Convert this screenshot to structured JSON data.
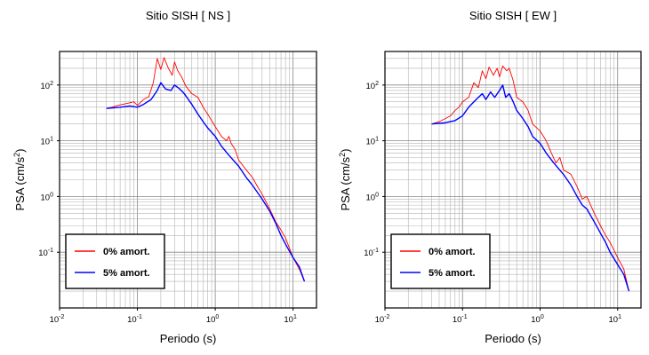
{
  "chart_data": [
    {
      "type": "line",
      "title": "Sitio SISH [ NS ]",
      "xlabel": "Periodo (s)",
      "ylabel": "PSA (cm/s2)",
      "xscale": "log",
      "yscale": "log",
      "xlim": [
        0.01,
        20
      ],
      "ylim": [
        0.01,
        400
      ],
      "x_ticks": [
        0.01,
        0.1,
        1,
        10
      ],
      "x_tick_labels": [
        [
          "10",
          "-2"
        ],
        [
          "10",
          "-1"
        ],
        [
          "10",
          "0"
        ],
        [
          "10",
          "1"
        ]
      ],
      "y_ticks": [
        0.1,
        1,
        10,
        100
      ],
      "y_tick_labels": [
        [
          "10",
          "-1"
        ],
        [
          "10",
          "0"
        ],
        [
          "10",
          "1"
        ],
        [
          "10",
          "2"
        ]
      ],
      "grid": true,
      "legend": "bottom-left",
      "series": [
        {
          "name": "0% amort.",
          "color": "#ff0000",
          "points": [
            [
              0.04,
              38
            ],
            [
              0.05,
              41
            ],
            [
              0.06,
              44
            ],
            [
              0.07,
              46
            ],
            [
              0.08,
              48
            ],
            [
              0.09,
              50
            ],
            [
              0.1,
              43
            ],
            [
              0.12,
              55
            ],
            [
              0.14,
              62
            ],
            [
              0.16,
              110
            ],
            [
              0.18,
              300
            ],
            [
              0.2,
              190
            ],
            [
              0.22,
              310
            ],
            [
              0.25,
              200
            ],
            [
              0.28,
              150
            ],
            [
              0.3,
              260
            ],
            [
              0.33,
              180
            ],
            [
              0.37,
              140
            ],
            [
              0.42,
              95
            ],
            [
              0.5,
              70
            ],
            [
              0.6,
              60
            ],
            [
              0.7,
              40
            ],
            [
              0.8,
              30
            ],
            [
              1.0,
              18
            ],
            [
              1.2,
              12
            ],
            [
              1.4,
              10
            ],
            [
              1.5,
              12
            ],
            [
              1.6,
              9
            ],
            [
              1.8,
              7
            ],
            [
              2.0,
              4.5
            ],
            [
              2.5,
              3
            ],
            [
              3.0,
              2.2
            ],
            [
              3.5,
              1.5
            ],
            [
              4.0,
              1.1
            ],
            [
              5.0,
              0.6
            ],
            [
              6.0,
              0.35
            ],
            [
              7.0,
              0.25
            ],
            [
              8.0,
              0.18
            ],
            [
              10.0,
              0.08
            ],
            [
              12.0,
              0.05
            ],
            [
              14.0,
              0.03
            ]
          ]
        },
        {
          "name": "5% amort.",
          "color": "#0000ff",
          "points": [
            [
              0.04,
              38
            ],
            [
              0.06,
              40
            ],
            [
              0.08,
              42
            ],
            [
              0.1,
              40
            ],
            [
              0.12,
              45
            ],
            [
              0.15,
              55
            ],
            [
              0.18,
              80
            ],
            [
              0.2,
              110
            ],
            [
              0.23,
              85
            ],
            [
              0.27,
              80
            ],
            [
              0.3,
              100
            ],
            [
              0.35,
              85
            ],
            [
              0.4,
              70
            ],
            [
              0.5,
              45
            ],
            [
              0.6,
              30
            ],
            [
              0.7,
              22
            ],
            [
              0.8,
              17
            ],
            [
              1.0,
              12
            ],
            [
              1.2,
              8
            ],
            [
              1.5,
              5.5
            ],
            [
              2.0,
              3.5
            ],
            [
              2.5,
              2.2
            ],
            [
              3.0,
              1.6
            ],
            [
              4.0,
              0.9
            ],
            [
              5.0,
              0.55
            ],
            [
              6.0,
              0.33
            ],
            [
              7.0,
              0.2
            ],
            [
              8.0,
              0.14
            ],
            [
              10.0,
              0.08
            ],
            [
              12.0,
              0.055
            ],
            [
              14.0,
              0.03
            ]
          ]
        }
      ]
    },
    {
      "type": "line",
      "title": "Sitio SISH [ EW ]",
      "xlabel": "Periodo (s)",
      "ylabel": "PSA (cm/s2)",
      "xscale": "log",
      "yscale": "log",
      "xlim": [
        0.01,
        20
      ],
      "ylim": [
        0.01,
        400
      ],
      "x_ticks": [
        0.01,
        0.1,
        1,
        10
      ],
      "x_tick_labels": [
        [
          "10",
          "-2"
        ],
        [
          "10",
          "-1"
        ],
        [
          "10",
          "0"
        ],
        [
          "10",
          "1"
        ]
      ],
      "y_ticks": [
        0.1,
        1,
        10,
        100
      ],
      "y_tick_labels": [
        [
          "10",
          "-1"
        ],
        [
          "10",
          "0"
        ],
        [
          "10",
          "1"
        ],
        [
          "10",
          "2"
        ]
      ],
      "grid": true,
      "legend": "bottom-left",
      "series": [
        {
          "name": "0% amort.",
          "color": "#ff0000",
          "points": [
            [
              0.04,
              20
            ],
            [
              0.05,
              22
            ],
            [
              0.06,
              25
            ],
            [
              0.07,
              28
            ],
            [
              0.08,
              35
            ],
            [
              0.09,
              40
            ],
            [
              0.1,
              50
            ],
            [
              0.12,
              60
            ],
            [
              0.14,
              110
            ],
            [
              0.16,
              90
            ],
            [
              0.18,
              180
            ],
            [
              0.2,
              130
            ],
            [
              0.22,
              210
            ],
            [
              0.25,
              150
            ],
            [
              0.28,
              200
            ],
            [
              0.3,
              140
            ],
            [
              0.33,
              220
            ],
            [
              0.37,
              180
            ],
            [
              0.4,
              200
            ],
            [
              0.45,
              120
            ],
            [
              0.5,
              60
            ],
            [
              0.6,
              50
            ],
            [
              0.7,
              35
            ],
            [
              0.8,
              20
            ],
            [
              1.0,
              15
            ],
            [
              1.2,
              10
            ],
            [
              1.4,
              6
            ],
            [
              1.6,
              4
            ],
            [
              1.8,
              5
            ],
            [
              2.0,
              3
            ],
            [
              2.5,
              2.5
            ],
            [
              3.0,
              1.5
            ],
            [
              3.5,
              0.9
            ],
            [
              4.0,
              1.0
            ],
            [
              5.0,
              0.5
            ],
            [
              6.0,
              0.3
            ],
            [
              7.0,
              0.2
            ],
            [
              8.0,
              0.15
            ],
            [
              10.0,
              0.08
            ],
            [
              12.0,
              0.05
            ],
            [
              14.0,
              0.02
            ]
          ]
        },
        {
          "name": "5% amort.",
          "color": "#0000ff",
          "points": [
            [
              0.04,
              20
            ],
            [
              0.06,
              21
            ],
            [
              0.08,
              23
            ],
            [
              0.1,
              28
            ],
            [
              0.12,
              40
            ],
            [
              0.15,
              55
            ],
            [
              0.18,
              70
            ],
            [
              0.2,
              55
            ],
            [
              0.23,
              75
            ],
            [
              0.26,
              60
            ],
            [
              0.3,
              80
            ],
            [
              0.33,
              100
            ],
            [
              0.36,
              60
            ],
            [
              0.4,
              70
            ],
            [
              0.45,
              50
            ],
            [
              0.5,
              35
            ],
            [
              0.6,
              25
            ],
            [
              0.7,
              18
            ],
            [
              0.8,
              12
            ],
            [
              1.0,
              9
            ],
            [
              1.2,
              6
            ],
            [
              1.5,
              4
            ],
            [
              2.0,
              2.5
            ],
            [
              2.5,
              1.6
            ],
            [
              3.0,
              1.0
            ],
            [
              3.5,
              0.7
            ],
            [
              4.0,
              0.6
            ],
            [
              5.0,
              0.35
            ],
            [
              6.0,
              0.22
            ],
            [
              7.0,
              0.15
            ],
            [
              8.0,
              0.1
            ],
            [
              10.0,
              0.06
            ],
            [
              12.0,
              0.04
            ],
            [
              14.0,
              0.02
            ]
          ]
        }
      ]
    }
  ]
}
